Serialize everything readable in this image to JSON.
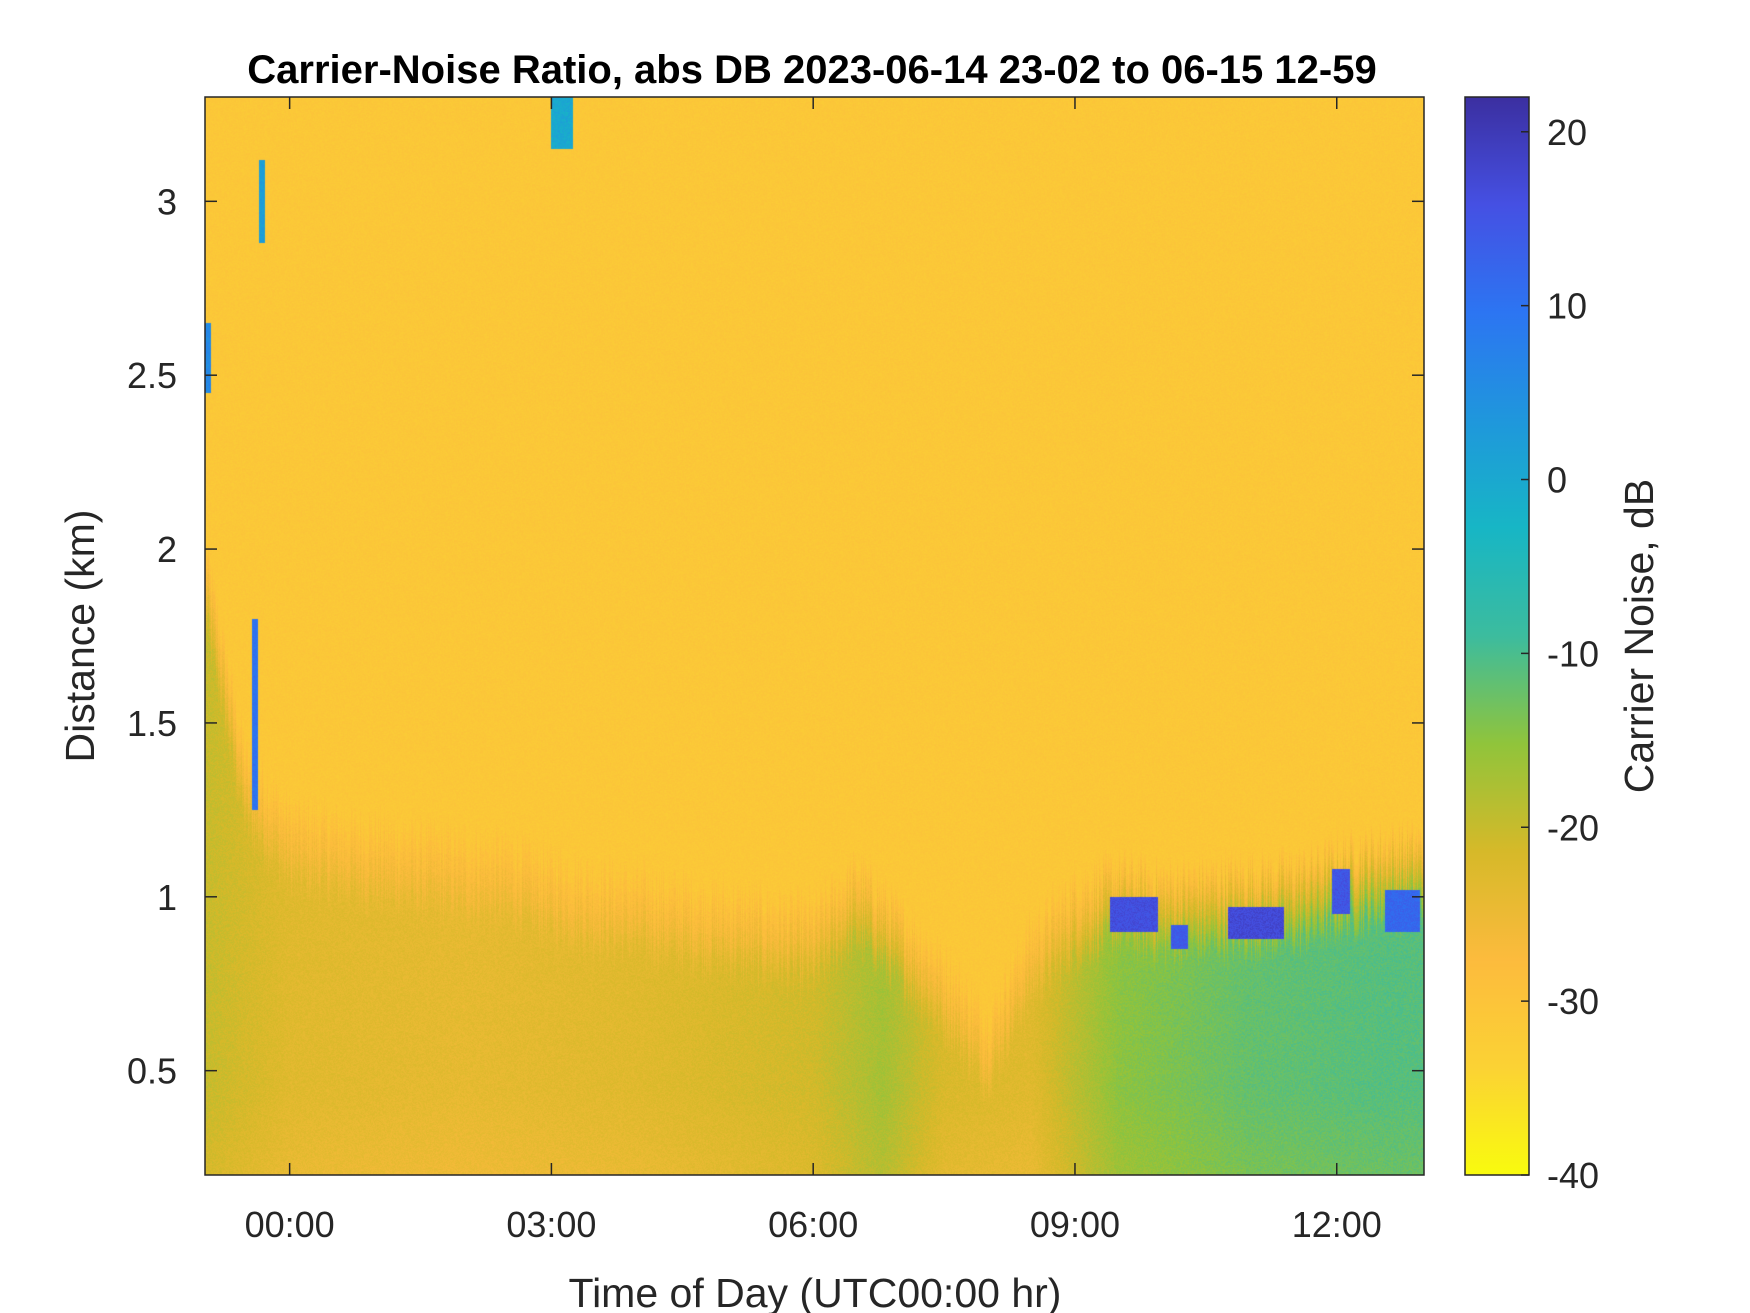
{
  "chart_data": {
    "type": "heatmap",
    "title": "Carrier-Noise Ratio, abs DB 2023-06-14 23-02 to 06-15 12-59",
    "xlabel": "Time of Day (UTC00:00 hr)",
    "ylabel": "Distance (km)",
    "colorbar_label": "Carrier Noise, dB",
    "x_range_hours": [
      -0.97,
      13.0
    ],
    "y_range_km": [
      0.2,
      3.3
    ],
    "color_range_db": [
      -40,
      22
    ],
    "colormap": "parula (reversed, -40 yellow to +20 dark blue)",
    "x_ticks": [
      {
        "value": 0,
        "label": "00:00"
      },
      {
        "value": 3,
        "label": "03:00"
      },
      {
        "value": 6,
        "label": "06:00"
      },
      {
        "value": 9,
        "label": "09:00"
      },
      {
        "value": 12,
        "label": "12:00"
      }
    ],
    "y_ticks": [
      {
        "value": 0.5,
        "label": "0.5"
      },
      {
        "value": 1.0,
        "label": "1"
      },
      {
        "value": 1.5,
        "label": "1.5"
      },
      {
        "value": 2.0,
        "label": "2"
      },
      {
        "value": 2.5,
        "label": "2.5"
      },
      {
        "value": 3.0,
        "label": "3"
      }
    ],
    "colorbar_ticks": [
      {
        "value": 20,
        "label": "20"
      },
      {
        "value": 10,
        "label": "10"
      },
      {
        "value": 0,
        "label": "0"
      },
      {
        "value": -10,
        "label": "-10"
      },
      {
        "value": -20,
        "label": "-20"
      },
      {
        "value": -30,
        "label": "-30"
      },
      {
        "value": -40,
        "label": "-40"
      }
    ],
    "background_value_db": -31,
    "boundary_layer_top_km": [
      {
        "t": -0.97,
        "h": 1.9
      },
      {
        "t": -0.5,
        "h": 1.3
      },
      {
        "t": 0.0,
        "h": 1.15
      },
      {
        "t": 0.5,
        "h": 1.12
      },
      {
        "t": 1.0,
        "h": 1.1
      },
      {
        "t": 1.5,
        "h": 1.08
      },
      {
        "t": 2.0,
        "h": 1.06
      },
      {
        "t": 2.5,
        "h": 1.05
      },
      {
        "t": 3.0,
        "h": 1.0
      },
      {
        "t": 3.5,
        "h": 0.97
      },
      {
        "t": 4.0,
        "h": 0.95
      },
      {
        "t": 4.5,
        "h": 0.92
      },
      {
        "t": 5.0,
        "h": 0.9
      },
      {
        "t": 5.5,
        "h": 0.88
      },
      {
        "t": 6.0,
        "h": 0.86
      },
      {
        "t": 6.5,
        "h": 0.98
      },
      {
        "t": 7.0,
        "h": 0.85
      },
      {
        "t": 7.5,
        "h": 0.72
      },
      {
        "t": 8.0,
        "h": 0.55
      },
      {
        "t": 8.5,
        "h": 0.82
      },
      {
        "t": 9.0,
        "h": 0.93
      },
      {
        "t": 9.5,
        "h": 0.98
      },
      {
        "t": 10.0,
        "h": 0.95
      },
      {
        "t": 10.5,
        "h": 0.96
      },
      {
        "t": 11.0,
        "h": 0.97
      },
      {
        "t": 11.5,
        "h": 0.98
      },
      {
        "t": 12.0,
        "h": 1.02
      },
      {
        "t": 12.5,
        "h": 1.05
      },
      {
        "t": 13.0,
        "h": 1.06
      }
    ],
    "boundary_layer_value_db": [
      {
        "t": -0.97,
        "db": -20
      },
      {
        "t": 0.0,
        "db": -23
      },
      {
        "t": 2.0,
        "db": -24
      },
      {
        "t": 4.0,
        "db": -23
      },
      {
        "t": 6.0,
        "db": -21
      },
      {
        "t": 6.8,
        "db": -17
      },
      {
        "t": 7.5,
        "db": -22
      },
      {
        "t": 8.5,
        "db": -23
      },
      {
        "t": 9.5,
        "db": -15
      },
      {
        "t": 11.0,
        "db": -12
      },
      {
        "t": 12.5,
        "db": -11
      },
      {
        "t": 13.0,
        "db": -11
      }
    ],
    "strong_echo_patches": [
      {
        "t0": 9.4,
        "t1": 9.95,
        "h0": 0.9,
        "h1": 1.0,
        "db": 16
      },
      {
        "t0": 10.1,
        "t1": 10.3,
        "h0": 0.85,
        "h1": 0.92,
        "db": 14
      },
      {
        "t0": 10.75,
        "t1": 11.4,
        "h0": 0.88,
        "h1": 0.97,
        "db": 17
      },
      {
        "t0": 11.95,
        "t1": 12.15,
        "h0": 0.95,
        "h1": 1.08,
        "db": 15
      },
      {
        "t0": 12.55,
        "t1": 12.95,
        "h0": 0.9,
        "h1": 1.02,
        "db": 12
      },
      {
        "t0": -0.35,
        "t1": -0.28,
        "h0": 2.88,
        "h1": 3.12,
        "db": 2
      },
      {
        "t0": -0.97,
        "t1": -0.9,
        "h0": 2.45,
        "h1": 2.65,
        "db": 6
      },
      {
        "t0": 3.0,
        "t1": 3.25,
        "h0": 3.15,
        "h1": 3.3,
        "db": 0
      },
      {
        "t0": -0.43,
        "t1": -0.36,
        "h0": 1.25,
        "h1": 1.8,
        "db": 10
      }
    ]
  }
}
